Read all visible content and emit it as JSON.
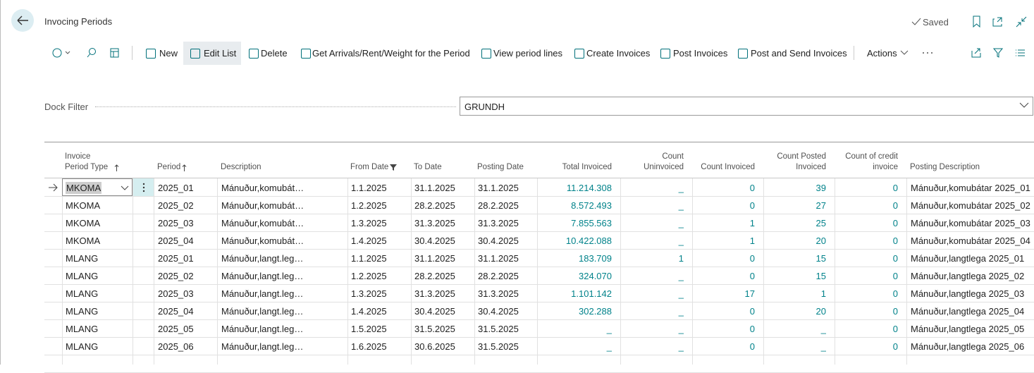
{
  "header": {
    "title": "Invocing Periods",
    "status": "Saved"
  },
  "toolbar": {
    "actions": [
      "New",
      "Edit List",
      "Delete",
      "Get Arrivals/Rent/Weight for the Period",
      "View period lines",
      "Create Invoices",
      "Post Invoices",
      "Post and Send Invoices",
      "Actions"
    ]
  },
  "filter": {
    "label": "Dock Filter",
    "value": "GRUNDH"
  },
  "table": {
    "columns": [
      "Invoice Period Type",
      "Period",
      "Description",
      "From Date",
      "To Date",
      "Posting Date",
      "Total Invoiced",
      "Count Uninvoiced",
      "Count Invoiced",
      "Count Posted Invoiced",
      "Count of credit invoice",
      "Posting Description"
    ],
    "rows": [
      [
        "MKOMA",
        "2025_01",
        "Mánuður,komubát…",
        "1.1.2025",
        "31.1.2025",
        "31.1.2025",
        "11.214.308",
        "_",
        0,
        39,
        0,
        "Mánuður,komubátar 2025_01"
      ],
      [
        "MKOMA",
        "2025_02",
        "Mánuður,komubát…",
        "1.2.2025",
        "28.2.2025",
        "28.2.2025",
        "8.572.493",
        "_",
        0,
        27,
        0,
        "Mánuður,komubátar 2025_02"
      ],
      [
        "MKOMA",
        "2025_03",
        "Mánuður,komubát…",
        "1.3.2025",
        "31.3.2025",
        "31.3.2025",
        "7.855.563",
        "_",
        1,
        25,
        0,
        "Mánuður,komubátar 2025_03"
      ],
      [
        "MKOMA",
        "2025_04",
        "Mánuður,komubát…",
        "1.4.2025",
        "30.4.2025",
        "30.4.2025",
        "10.422.088",
        "_",
        1,
        20,
        0,
        "Mánuður,komubátar 2025_04"
      ],
      [
        "MLANG",
        "2025_01",
        "Mánuður,langt.leg…",
        "1.1.2025",
        "31.1.2025",
        "31.1.2025",
        "183.709",
        1,
        0,
        15,
        0,
        "Mánuður,langtlega 2025_01"
      ],
      [
        "MLANG",
        "2025_02",
        "Mánuður,langt.leg…",
        "1.2.2025",
        "28.2.2025",
        "28.2.2025",
        "324.070",
        "_",
        0,
        15,
        0,
        "Mánuður,langtlega 2025_02"
      ],
      [
        "MLANG",
        "2025_03",
        "Mánuður,langt.leg…",
        "1.3.2025",
        "31.3.2025",
        "31.3.2025",
        "1.101.142",
        "_",
        17,
        1,
        0,
        "Mánuður,langtlega 2025_03"
      ],
      [
        "MLANG",
        "2025_04",
        "Mánuður,langt.leg…",
        "1.4.2025",
        "30.4.2025",
        "30.4.2025",
        "302.288",
        "_",
        0,
        20,
        0,
        "Mánuður,langtlega 2025_04"
      ],
      [
        "MLANG",
        "2025_05",
        "Mánuður,langt.leg…",
        "1.5.2025",
        "31.5.2025",
        "31.5.2025",
        "_",
        "_",
        0,
        "_",
        0,
        "Mánuður,langtlega 2025_05"
      ],
      [
        "MLANG",
        "2025_06",
        "Mánuður,langt.leg…",
        "1.6.2025",
        "30.6.2025",
        "31.5.2025",
        "_",
        "_",
        0,
        "_",
        0,
        "Mánuður,langtlega 2025_06"
      ]
    ]
  }
}
